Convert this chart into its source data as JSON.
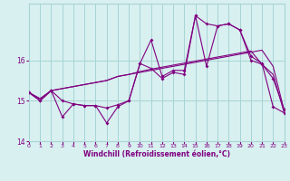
{
  "x": [
    0,
    1,
    2,
    3,
    4,
    5,
    6,
    7,
    8,
    9,
    10,
    11,
    12,
    13,
    14,
    15,
    16,
    17,
    18,
    19,
    20,
    21,
    22,
    23
  ],
  "line_smooth1": [
    15.2,
    15.05,
    15.25,
    15.3,
    15.35,
    15.4,
    15.45,
    15.5,
    15.6,
    15.65,
    15.7,
    15.75,
    15.8,
    15.85,
    15.9,
    15.95,
    16.0,
    16.05,
    16.1,
    16.15,
    16.2,
    16.25,
    15.85,
    14.75
  ],
  "line_smooth2": [
    15.2,
    15.05,
    15.25,
    15.3,
    15.35,
    15.4,
    15.45,
    15.5,
    15.6,
    15.65,
    15.72,
    15.78,
    15.83,
    15.88,
    15.93,
    15.98,
    16.03,
    16.08,
    16.13,
    16.18,
    16.23,
    15.9,
    15.65,
    14.7
  ],
  "line_jagged1": [
    15.2,
    15.0,
    15.25,
    15.0,
    14.92,
    14.88,
    14.88,
    14.82,
    14.9,
    15.0,
    15.92,
    16.5,
    15.6,
    15.75,
    15.75,
    17.1,
    15.85,
    16.85,
    16.9,
    16.75,
    16.0,
    15.9,
    15.55,
    14.78
  ],
  "line_jagged2": [
    15.2,
    15.0,
    15.25,
    14.6,
    14.92,
    14.88,
    14.88,
    14.45,
    14.85,
    15.0,
    15.92,
    15.8,
    15.55,
    15.7,
    15.65,
    17.1,
    16.9,
    16.85,
    16.9,
    16.75,
    16.1,
    15.92,
    14.85,
    14.7
  ],
  "color": "#800080",
  "bg_color": "#d8f0f0",
  "grid_color": "#a8d4d4",
  "xlabel": "Windchill (Refroidissement éolien,°C)",
  "xlim": [
    0,
    23
  ],
  "ylim": [
    14.0,
    17.4
  ],
  "yticks": [
    14,
    15,
    16
  ],
  "xticks": [
    0,
    1,
    2,
    3,
    4,
    5,
    6,
    7,
    8,
    9,
    10,
    11,
    12,
    13,
    14,
    15,
    16,
    17,
    18,
    19,
    20,
    21,
    22,
    23
  ]
}
